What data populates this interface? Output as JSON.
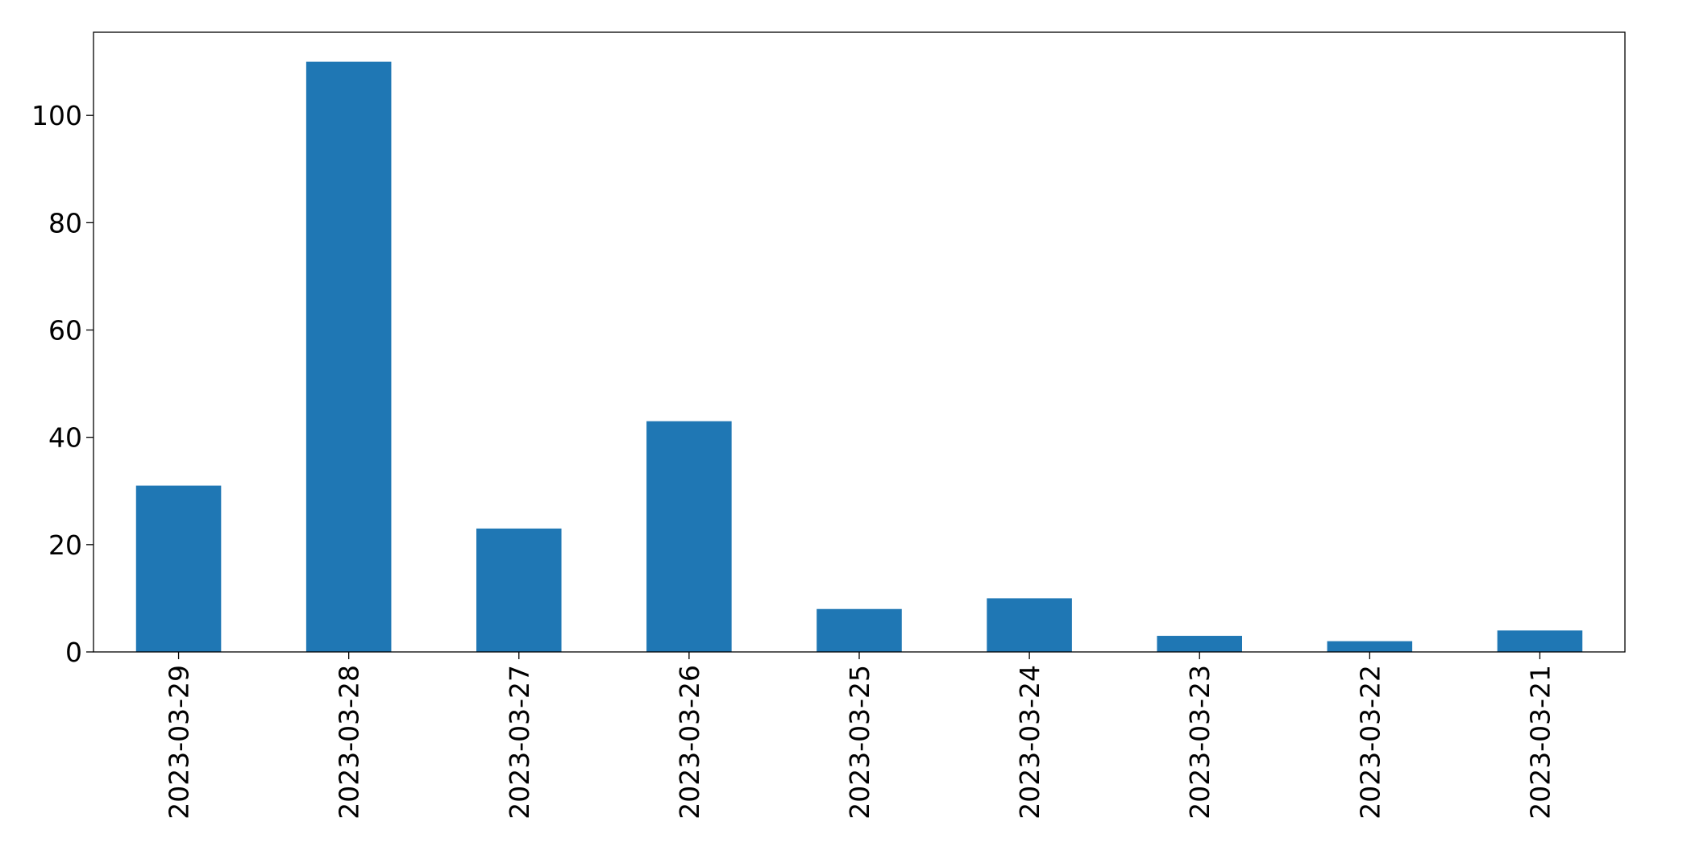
{
  "chart_data": {
    "type": "bar",
    "categories": [
      "2023-03-29",
      "2023-03-28",
      "2023-03-27",
      "2023-03-26",
      "2023-03-25",
      "2023-03-24",
      "2023-03-23",
      "2023-03-22",
      "2023-03-21"
    ],
    "values": [
      31,
      110,
      23,
      43,
      8,
      10,
      3,
      2,
      4
    ],
    "color": "#1f77b4",
    "ylim": [
      0,
      115.5
    ],
    "yticks": [
      0,
      20,
      40,
      60,
      80,
      100
    ],
    "grid": false
  }
}
